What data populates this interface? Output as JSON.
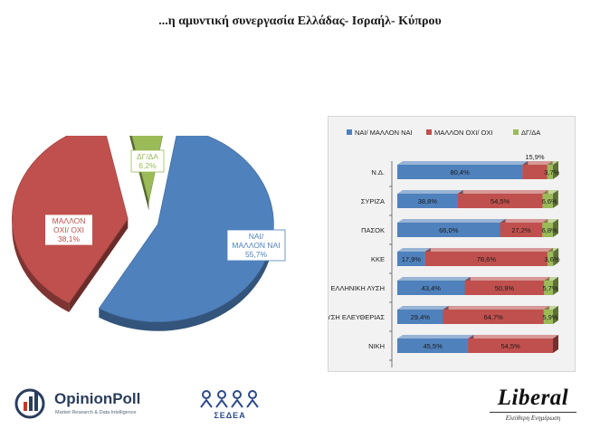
{
  "page": {
    "title": "...η αμυντική συνεργασία Ελλάδας- Ισραήλ- Κύπρου"
  },
  "chart_data": [
    {
      "type": "pie",
      "title": "",
      "slices": [
        {
          "label": "ΝΑΙ/\nΜΑΛΛΟΝ ΝΑΙ",
          "value": 55.7,
          "value_label": "55,7%",
          "color": "#4f81bd"
        },
        {
          "label": "ΜΑΛΛΟΝ\nΟΧΙ/ ΟΧΙ",
          "value": 38.1,
          "value_label": "38,1%",
          "color": "#c0504d"
        },
        {
          "label": "ΔΓ/ΔΑ",
          "value": 6.2,
          "value_label": "6,2%",
          "color": "#9bbb59"
        }
      ]
    },
    {
      "type": "bar",
      "orientation": "horizontal",
      "stacked": true,
      "legend_position": "top",
      "categories": [
        "Ν.Δ.",
        "ΣΥΡΙΖΑ",
        "ΠΑΣΟΚ",
        "ΚΚΕ",
        "ΕΛΛΗΝΙΚΗ ΛΥΣΗ",
        "ΠΛΕΥΣΗ ΕΛΕΥΘΕΡΙΑΣ",
        "ΝΙΚΗ"
      ],
      "series": [
        {
          "name": "ΝΑΙ/ ΜΑΛΛΟΝ ΝΑΙ",
          "color": "#4f81bd",
          "values": [
            80.4,
            38.8,
            66.0,
            17.9,
            43.4,
            29.4,
            45.5
          ],
          "labels": [
            "80,4%",
            "38,8%",
            "66,0%",
            "17,9%",
            "43,4%",
            "29,4%",
            "45,5%"
          ]
        },
        {
          "name": "ΜΑΛΛΟΝ ΟΧΙ/ ΟΧΙ",
          "color": "#c0504d",
          "values": [
            15.9,
            54.5,
            27.2,
            78.6,
            50.9,
            64.7,
            54.5
          ],
          "labels": [
            "15,9%",
            "54,5%",
            "27,2%",
            "78,6%",
            "50,9%",
            "64,7%",
            "54,5%"
          ]
        },
        {
          "name": "ΔΓ/ΔΑ",
          "color": "#9bbb59",
          "values": [
            3.7,
            6.6,
            6.8,
            3.6,
            5.7,
            5.9,
            0
          ],
          "labels": [
            "3,7%",
            "6,6%",
            "6,8%",
            "3,6%",
            "5,7%",
            "5,9%",
            ""
          ]
        }
      ],
      "xlim": [
        0,
        100
      ]
    }
  ],
  "logos": {
    "opinionpoll": {
      "name": "OpinionPoll",
      "tagline": "Market Research & Data Intelligence"
    },
    "sedea": {
      "name": "ΣΕΔΕΑ"
    },
    "liberal": {
      "name": "Liberal",
      "tagline": "Ελεύθερη Ενημέρωση"
    }
  }
}
